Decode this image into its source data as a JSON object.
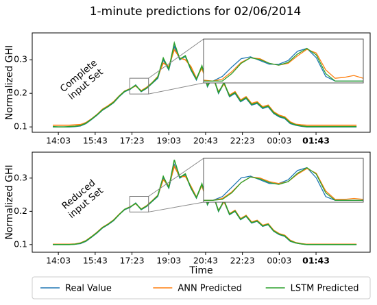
{
  "title": "1-minute predictions for 02/06/2014",
  "chart_data": [
    {
      "type": "line",
      "ylabel": "Normalized GHI",
      "annotation": [
        "Complete",
        "input Set"
      ],
      "xlim": [
        -71,
        847
      ],
      "ylim": [
        0.084,
        0.38
      ],
      "xticks": [
        {
          "value": 0,
          "label": "14:03"
        },
        {
          "value": 100,
          "label": "15:43"
        },
        {
          "value": 200,
          "label": "17:23"
        },
        {
          "value": 300,
          "label": "19:03"
        },
        {
          "value": 400,
          "label": "20:43"
        },
        {
          "value": 500,
          "label": "22:23"
        },
        {
          "value": 600,
          "label": "00:03"
        },
        {
          "value": 700,
          "label": "01:43"
        }
      ],
      "yticks": [
        0.1,
        0.2,
        0.3
      ],
      "x": [
        -15,
        0,
        15,
        30,
        45,
        60,
        75,
        90,
        105,
        120,
        135,
        150,
        165,
        180,
        195,
        210,
        225,
        240,
        255,
        270,
        285,
        300,
        315,
        330,
        345,
        360,
        375,
        390,
        405,
        420,
        435,
        450,
        465,
        480,
        495,
        510,
        525,
        540,
        555,
        570,
        585,
        600,
        615,
        630,
        645,
        660,
        675,
        690,
        705,
        720,
        735,
        750,
        765,
        780,
        795,
        810
      ],
      "series": [
        {
          "name": "Real Value",
          "color": "#1f77b4",
          "values": [
            0.1,
            0.1,
            0.1,
            0.1,
            0.101,
            0.103,
            0.11,
            0.122,
            0.135,
            0.15,
            0.16,
            0.172,
            0.19,
            0.205,
            0.212,
            0.225,
            0.205,
            0.215,
            0.23,
            0.245,
            0.3,
            0.27,
            0.34,
            0.3,
            0.31,
            0.27,
            0.24,
            0.28,
            0.22,
            0.25,
            0.2,
            0.23,
            0.19,
            0.2,
            0.175,
            0.185,
            0.165,
            0.17,
            0.155,
            0.16,
            0.14,
            0.13,
            0.125,
            0.11,
            0.105,
            0.102,
            0.1,
            0.1,
            0.1,
            0.1,
            0.1,
            0.1,
            0.1,
            0.1,
            0.1,
            0.1
          ]
        },
        {
          "name": "ANN Predicted",
          "color": "#ff7f0e",
          "values": [
            0.105,
            0.105,
            0.105,
            0.105,
            0.106,
            0.107,
            0.113,
            0.124,
            0.137,
            0.153,
            0.163,
            0.175,
            0.192,
            0.207,
            0.214,
            0.222,
            0.208,
            0.218,
            0.232,
            0.25,
            0.29,
            0.28,
            0.33,
            0.305,
            0.3,
            0.28,
            0.245,
            0.275,
            0.225,
            0.245,
            0.205,
            0.228,
            0.195,
            0.205,
            0.18,
            0.19,
            0.17,
            0.175,
            0.16,
            0.165,
            0.145,
            0.135,
            0.13,
            0.115,
            0.108,
            0.106,
            0.105,
            0.105,
            0.105,
            0.105,
            0.105,
            0.105,
            0.105,
            0.105,
            0.105,
            0.105
          ]
        },
        {
          "name": "LSTM Predicted",
          "color": "#2ca02c",
          "values": [
            0.101,
            0.1,
            0.1,
            0.101,
            0.102,
            0.104,
            0.111,
            0.123,
            0.136,
            0.151,
            0.161,
            0.173,
            0.191,
            0.206,
            0.213,
            0.224,
            0.206,
            0.216,
            0.231,
            0.248,
            0.305,
            0.272,
            0.35,
            0.302,
            0.312,
            0.272,
            0.242,
            0.282,
            0.222,
            0.252,
            0.202,
            0.232,
            0.192,
            0.202,
            0.177,
            0.187,
            0.167,
            0.172,
            0.157,
            0.162,
            0.142,
            0.132,
            0.127,
            0.112,
            0.106,
            0.103,
            0.101,
            0.101,
            0.101,
            0.101,
            0.101,
            0.101,
            0.101,
            0.101,
            0.101,
            0.101
          ]
        }
      ],
      "inset": {
        "xlim": [
          194,
          245
        ],
        "ylim": [
          0.198,
          0.245
        ],
        "x": [
          194,
          197,
          200,
          203,
          206,
          209,
          212,
          215,
          218,
          221,
          224,
          227,
          230,
          233,
          236,
          239,
          242,
          245
        ],
        "series": [
          {
            "color": "#1f77b4",
            "values": [
              0.2,
              0.2,
              0.205,
              0.215,
              0.224,
              0.226,
              0.222,
              0.218,
              0.218,
              0.222,
              0.232,
              0.235,
              0.225,
              0.205,
              0.2,
              0.2,
              0.2,
              0.2
            ]
          },
          {
            "color": "#ff7f0e",
            "values": [
              0.201,
              0.2,
              0.202,
              0.21,
              0.22,
              0.225,
              0.224,
              0.219,
              0.217,
              0.219,
              0.227,
              0.234,
              0.23,
              0.212,
              0.203,
              0.204,
              0.206,
              0.203
            ]
          },
          {
            "color": "#2ca02c",
            "values": [
              0.2,
              0.2,
              0.2,
              0.208,
              0.219,
              0.225,
              0.223,
              0.219,
              0.217,
              0.22,
              0.229,
              0.235,
              0.228,
              0.208,
              0.2,
              0.2,
              0.2,
              0.2
            ]
          }
        ]
      }
    },
    {
      "type": "line",
      "ylabel": "Normalized GHI",
      "xlabel": "Time",
      "annotation": [
        "Reduced",
        "input Set"
      ],
      "xlim": [
        -71,
        847
      ],
      "ylim": [
        0.077,
        0.378
      ],
      "xticks": [
        {
          "value": 0,
          "label": "14:03"
        },
        {
          "value": 100,
          "label": "15:43"
        },
        {
          "value": 200,
          "label": "17:23"
        },
        {
          "value": 300,
          "label": "19:03"
        },
        {
          "value": 400,
          "label": "20:43"
        },
        {
          "value": 500,
          "label": "22:23"
        },
        {
          "value": 600,
          "label": "00:03"
        },
        {
          "value": 700,
          "label": "01:43"
        }
      ],
      "yticks": [
        0.1,
        0.2,
        0.3
      ],
      "x": [
        -15,
        0,
        15,
        30,
        45,
        60,
        75,
        90,
        105,
        120,
        135,
        150,
        165,
        180,
        195,
        210,
        225,
        240,
        255,
        270,
        285,
        300,
        315,
        330,
        345,
        360,
        375,
        390,
        405,
        420,
        435,
        450,
        465,
        480,
        495,
        510,
        525,
        540,
        555,
        570,
        585,
        600,
        615,
        630,
        645,
        660,
        675,
        690,
        705,
        720,
        735,
        750,
        765,
        780,
        795,
        810
      ],
      "series": [
        {
          "color": "#1f77b4",
          "values": [
            0.1,
            0.1,
            0.1,
            0.1,
            0.101,
            0.103,
            0.11,
            0.122,
            0.135,
            0.15,
            0.16,
            0.172,
            0.19,
            0.205,
            0.212,
            0.225,
            0.205,
            0.215,
            0.23,
            0.245,
            0.3,
            0.27,
            0.34,
            0.3,
            0.31,
            0.27,
            0.24,
            0.28,
            0.22,
            0.25,
            0.2,
            0.23,
            0.19,
            0.2,
            0.175,
            0.185,
            0.165,
            0.17,
            0.155,
            0.16,
            0.14,
            0.13,
            0.125,
            0.11,
            0.105,
            0.102,
            0.1,
            0.1,
            0.1,
            0.1,
            0.1,
            0.1,
            0.1,
            0.1,
            0.1,
            0.1
          ]
        },
        {
          "color": "#ff7f0e",
          "values": [
            0.101,
            0.101,
            0.101,
            0.101,
            0.102,
            0.105,
            0.112,
            0.124,
            0.137,
            0.152,
            0.162,
            0.174,
            0.191,
            0.206,
            0.214,
            0.223,
            0.207,
            0.217,
            0.232,
            0.248,
            0.295,
            0.276,
            0.335,
            0.304,
            0.305,
            0.276,
            0.243,
            0.278,
            0.223,
            0.248,
            0.203,
            0.229,
            0.193,
            0.203,
            0.178,
            0.188,
            0.168,
            0.173,
            0.158,
            0.163,
            0.143,
            0.133,
            0.128,
            0.113,
            0.106,
            0.103,
            0.101,
            0.101,
            0.101,
            0.101,
            0.101,
            0.101,
            0.101,
            0.101,
            0.101,
            0.101
          ]
        },
        {
          "color": "#2ca02c",
          "values": [
            0.1,
            0.1,
            0.1,
            0.1,
            0.101,
            0.104,
            0.111,
            0.123,
            0.136,
            0.151,
            0.161,
            0.173,
            0.19,
            0.206,
            0.213,
            0.224,
            0.206,
            0.216,
            0.231,
            0.247,
            0.305,
            0.271,
            0.355,
            0.302,
            0.313,
            0.271,
            0.241,
            0.283,
            0.221,
            0.253,
            0.201,
            0.233,
            0.191,
            0.201,
            0.176,
            0.186,
            0.166,
            0.171,
            0.156,
            0.161,
            0.141,
            0.131,
            0.126,
            0.111,
            0.105,
            0.102,
            0.1,
            0.1,
            0.1,
            0.1,
            0.1,
            0.1,
            0.1,
            0.1,
            0.1,
            0.1
          ]
        }
      ],
      "inset": {
        "xlim": [
          194,
          245
        ],
        "ylim": [
          0.198,
          0.245
        ],
        "x": [
          194,
          197,
          200,
          203,
          206,
          209,
          212,
          215,
          218,
          221,
          224,
          227,
          230,
          233,
          236,
          239,
          242,
          245
        ],
        "series": [
          {
            "color": "#1f77b4",
            "values": [
              0.2,
              0.2,
              0.204,
              0.214,
              0.224,
              0.226,
              0.222,
              0.218,
              0.218,
              0.222,
              0.232,
              0.235,
              0.224,
              0.204,
              0.2,
              0.2,
              0.2,
              0.2
            ]
          },
          {
            "color": "#ff7f0e",
            "values": [
              0.2,
              0.2,
              0.202,
              0.209,
              0.219,
              0.225,
              0.224,
              0.22,
              0.218,
              0.22,
              0.228,
              0.234,
              0.229,
              0.21,
              0.201,
              0.201,
              0.202,
              0.201
            ]
          },
          {
            "color": "#2ca02c",
            "values": [
              0.2,
              0.2,
              0.201,
              0.208,
              0.219,
              0.225,
              0.223,
              0.219,
              0.217,
              0.22,
              0.229,
              0.235,
              0.228,
              0.208,
              0.2,
              0.2,
              0.2,
              0.2
            ]
          }
        ]
      }
    }
  ]
}
